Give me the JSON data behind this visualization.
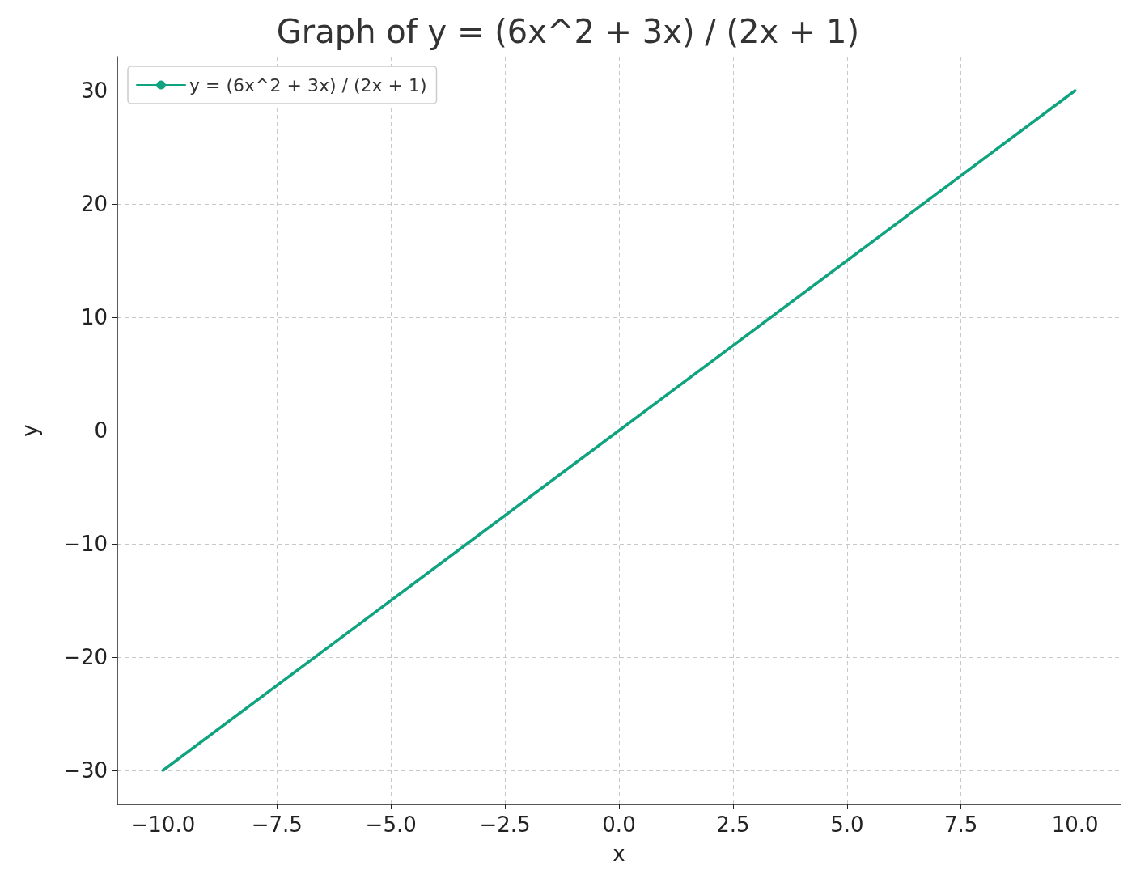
{
  "chart_data": {
    "type": "line",
    "title": "Graph of y = (6x^2 + 3x) / (2x + 1)",
    "xlabel": "x",
    "ylabel": "y",
    "x": [
      -10,
      0,
      10
    ],
    "series": [
      {
        "name": "y = (6x^2 + 3x) / (2x + 1)",
        "color": "#10a37f",
        "values": [
          -30,
          0,
          30
        ]
      }
    ],
    "xlim": [
      -11,
      11
    ],
    "xticks": [
      {
        "value": -10,
        "label": "−10.0"
      },
      {
        "value": -7.5,
        "label": "−7.5"
      },
      {
        "value": -5,
        "label": "−5.0"
      },
      {
        "value": -2.5,
        "label": "−2.5"
      },
      {
        "value": 0,
        "label": "0.0"
      },
      {
        "value": 2.5,
        "label": "2.5"
      },
      {
        "value": 5,
        "label": "5.0"
      },
      {
        "value": 7.5,
        "label": "7.5"
      },
      {
        "value": 10,
        "label": "10.0"
      }
    ],
    "ylim": [
      -33,
      33
    ],
    "yticks": [
      {
        "value": -30,
        "label": "−30"
      },
      {
        "value": -20,
        "label": "−20"
      },
      {
        "value": -10,
        "label": "−10"
      },
      0,
      10,
      20,
      30
    ],
    "grid": true,
    "legend": "top left",
    "marker": "none",
    "line_style": "solid"
  }
}
